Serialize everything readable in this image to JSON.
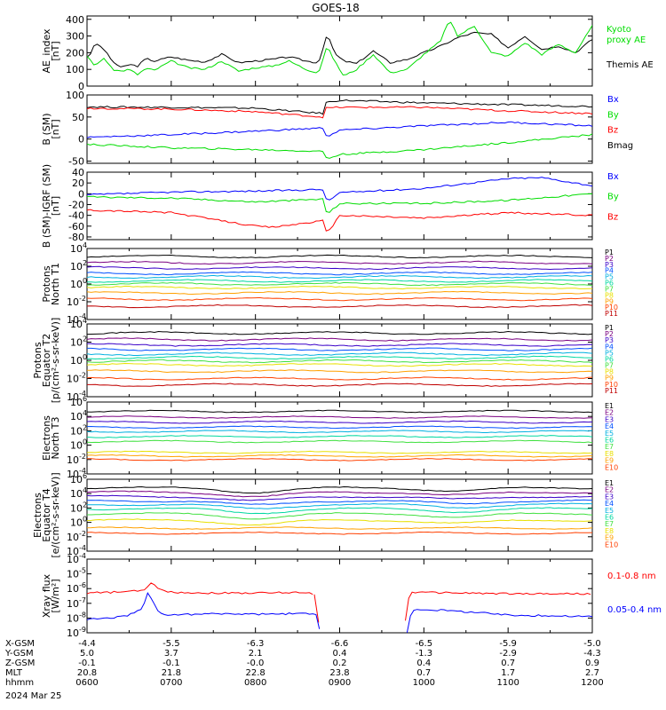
{
  "title": "GOES-18",
  "date_label": "2024 Mar 25",
  "colors": {
    "black": "#000000",
    "red": "#ff0000",
    "green": "#00dd00",
    "blue": "#0000ff",
    "channels": [
      "#000000",
      "#7a0080",
      "#3a00c8",
      "#0050ff",
      "#00b0e0",
      "#00d8a0",
      "#40e040",
      "#e8e000",
      "#ffa000",
      "#ff4000",
      "#c00000"
    ]
  },
  "chart_data": [
    {
      "id": "ae",
      "type": "line",
      "ylabel": [
        "AE_index",
        "[nT]"
      ],
      "ylim": [
        0,
        420
      ],
      "yticks": [
        {
          "v": 0,
          "t": "0"
        },
        {
          "v": 100,
          "t": "100"
        },
        {
          "v": 200,
          "t": "200"
        },
        {
          "v": 300,
          "t": "300"
        },
        {
          "v": 400,
          "t": "400"
        }
      ],
      "legend": [
        {
          "text": "Kyoto",
          "color": "#00dd00"
        },
        {
          "text": "proxy AE",
          "color": "#00dd00"
        },
        {
          "text": "Themis AE",
          "color": "#000000"
        }
      ],
      "series": [
        {
          "name": "Themis AE",
          "color": "#000000",
          "t": [
            6.0,
            6.05,
            6.1,
            6.2,
            6.3,
            6.4,
            6.5,
            6.6,
            6.7,
            6.8,
            7.0,
            7.2,
            7.4,
            7.6,
            7.8,
            8.0,
            8.2,
            8.4,
            8.6,
            8.75,
            8.85,
            8.95,
            9.05,
            9.2,
            9.4,
            9.6,
            9.8,
            10.0,
            10.2,
            10.4,
            10.6,
            10.8,
            11.0,
            11.2,
            11.4,
            11.6,
            11.8,
            12.0
          ],
          "v": [
            175,
            200,
            260,
            220,
            150,
            110,
            130,
            120,
            165,
            150,
            175,
            155,
            145,
            190,
            140,
            150,
            160,
            175,
            150,
            140,
            310,
            190,
            150,
            135,
            210,
            140,
            160,
            200,
            240,
            290,
            320,
            310,
            230,
            300,
            220,
            240,
            200,
            280
          ]
        },
        {
          "name": "Kyoto proxy AE",
          "color": "#00dd00",
          "t": [
            6.0,
            6.1,
            6.2,
            6.3,
            6.4,
            6.5,
            6.6,
            6.7,
            6.8,
            7.0,
            7.2,
            7.4,
            7.6,
            7.8,
            8.0,
            8.2,
            8.4,
            8.6,
            8.75,
            8.85,
            8.95,
            9.05,
            9.2,
            9.4,
            9.6,
            9.8,
            10.0,
            10.2,
            10.3,
            10.4,
            10.6,
            10.8,
            11.0,
            11.2,
            11.4,
            11.6,
            11.8,
            12.0
          ],
          "v": [
            180,
            120,
            170,
            100,
            90,
            100,
            70,
            105,
            95,
            150,
            110,
            100,
            150,
            90,
            110,
            120,
            150,
            100,
            80,
            240,
            140,
            60,
            100,
            190,
            80,
            100,
            190,
            270,
            400,
            300,
            360,
            200,
            180,
            260,
            190,
            250,
            200,
            360
          ]
        }
      ]
    },
    {
      "id": "bsm",
      "type": "line",
      "ylabel": [
        "B (SM)",
        "[nT]"
      ],
      "ylim": [
        -55,
        100
      ],
      "yticks": [
        {
          "v": -50,
          "t": "-50"
        },
        {
          "v": 0,
          "t": "0"
        },
        {
          "v": 50,
          "t": "50"
        },
        {
          "v": 100,
          "t": "100"
        }
      ],
      "legend": [
        {
          "text": "Bx",
          "color": "#0000ff"
        },
        {
          "text": "By",
          "color": "#00dd00"
        },
        {
          "text": "Bz",
          "color": "#ff0000"
        },
        {
          "text": "Bmag",
          "color": "#000000"
        }
      ],
      "series": [
        {
          "name": "Bmag",
          "color": "#000000",
          "t": [
            6.0,
            7.0,
            8.0,
            8.8,
            8.82,
            9.0,
            10.0,
            11.0,
            12.0
          ],
          "v": [
            73,
            72,
            70,
            58,
            82,
            88,
            82,
            78,
            74
          ]
        },
        {
          "name": "Bz",
          "color": "#ff0000",
          "t": [
            6.0,
            7.0,
            8.0,
            8.8,
            8.82,
            9.0,
            10.0,
            11.0,
            12.0
          ],
          "v": [
            70,
            68,
            62,
            50,
            70,
            72,
            72,
            64,
            58
          ]
        },
        {
          "name": "Bx",
          "color": "#0000ff",
          "t": [
            6.0,
            7.0,
            8.0,
            8.8,
            8.85,
            9.0,
            10.0,
            11.0,
            12.0
          ],
          "v": [
            4,
            10,
            18,
            25,
            5,
            20,
            30,
            38,
            30
          ]
        },
        {
          "name": "By",
          "color": "#00dd00",
          "t": [
            6.0,
            7.0,
            8.0,
            8.8,
            8.85,
            9.0,
            10.0,
            11.0,
            12.0
          ],
          "v": [
            -12,
            -20,
            -24,
            -28,
            -45,
            -35,
            -24,
            -8,
            10
          ]
        }
      ]
    },
    {
      "id": "bigrf",
      "type": "line",
      "ylabel": [
        "B (SM)-IGRF (SM)",
        "[nT]"
      ],
      "ylim": [
        -85,
        40
      ],
      "yticks": [
        {
          "v": -80,
          "t": "-80"
        },
        {
          "v": -60,
          "t": "-60"
        },
        {
          "v": -40,
          "t": "-40"
        },
        {
          "v": -20,
          "t": "-20"
        },
        {
          "v": 0,
          "t": "0"
        },
        {
          "v": 20,
          "t": "20"
        },
        {
          "v": 40,
          "t": "40"
        }
      ],
      "legend": [
        {
          "text": "Bx",
          "color": "#0000ff"
        },
        {
          "text": "By",
          "color": "#00dd00"
        },
        {
          "text": "Bz",
          "color": "#ff0000"
        }
      ],
      "series": [
        {
          "name": "Bx",
          "color": "#0000ff",
          "t": [
            6.0,
            7.0,
            8.0,
            8.8,
            8.85,
            9.0,
            10.0,
            11.0,
            11.4,
            12.0
          ],
          "v": [
            -2,
            3,
            5,
            8,
            -15,
            2,
            10,
            28,
            30,
            15
          ]
        },
        {
          "name": "By",
          "color": "#00dd00",
          "t": [
            6.0,
            7.0,
            8.0,
            8.8,
            8.85,
            9.0,
            10.0,
            11.0,
            12.0
          ],
          "v": [
            -6,
            -8,
            -15,
            -10,
            -38,
            -18,
            -18,
            -12,
            0
          ]
        },
        {
          "name": "Bz",
          "color": "#ff0000",
          "t": [
            6.0,
            7.0,
            8.0,
            8.2,
            8.8,
            8.85,
            9.0,
            10.0,
            11.0,
            12.0
          ],
          "v": [
            -30,
            -35,
            -60,
            -62,
            -50,
            -75,
            -40,
            -45,
            -35,
            -40
          ]
        }
      ]
    },
    {
      "id": "pn",
      "type": "line",
      "log": true,
      "ylabel": [
        "Protons",
        "North T1"
      ],
      "ylim": [
        -4,
        4
      ],
      "yticks": [
        {
          "v": -4,
          "t": "10",
          "e": "-4"
        },
        {
          "v": -2,
          "t": "10",
          "e": "-2"
        },
        {
          "v": 0,
          "t": "10",
          "e": "0"
        },
        {
          "v": 2,
          "t": "10",
          "e": "2"
        },
        {
          "v": 4,
          "t": "10",
          "e": "4"
        }
      ],
      "levels": [
        3.1,
        2.4,
        1.8,
        1.2,
        0.8,
        0.35,
        0.0,
        -0.4,
        -1.0,
        -1.7,
        -2.5
      ],
      "names": [
        "P1",
        "P2",
        "P3",
        "P4",
        "P5",
        "P6",
        "P7",
        "P8",
        "P9",
        "P10",
        "P11"
      ]
    },
    {
      "id": "pe",
      "type": "line",
      "log": true,
      "ylabel": [
        "Protons",
        "Equator T2",
        "[p/(cm²-s-sr-keV)]"
      ],
      "ylim": [
        -4,
        4
      ],
      "yticks": [
        {
          "v": -4,
          "t": "10",
          "e": "-4"
        },
        {
          "v": -2,
          "t": "10",
          "e": "-2"
        },
        {
          "v": 0,
          "t": "10",
          "e": "0"
        },
        {
          "v": 2,
          "t": "10",
          "e": "2"
        },
        {
          "v": 4,
          "t": "10",
          "e": "4"
        }
      ],
      "levels": [
        3.0,
        2.3,
        1.7,
        1.2,
        0.7,
        0.3,
        -0.1,
        -0.5,
        -1.2,
        -2.0,
        -2.7
      ],
      "names": [
        "P1",
        "P2",
        "P3",
        "P4",
        "P5",
        "P6",
        "P7",
        "P8",
        "P9",
        "P10",
        "P11"
      ]
    },
    {
      "id": "en",
      "type": "line",
      "log": true,
      "ylabel": [
        "Electrons",
        "North T3"
      ],
      "ylim": [
        -4,
        6
      ],
      "yticks": [
        {
          "v": -4,
          "t": "10",
          "e": "-4"
        },
        {
          "v": -2,
          "t": "10",
          "e": "-2"
        },
        {
          "v": 0,
          "t": "10",
          "e": "0"
        },
        {
          "v": 2,
          "t": "10",
          "e": "2"
        },
        {
          "v": 4,
          "t": "10",
          "e": "4"
        },
        {
          "v": 6,
          "t": "10",
          "e": "6"
        }
      ],
      "levels": [
        4.7,
        3.9,
        3.2,
        2.5,
        1.9,
        1.2,
        0.5,
        -1.0,
        -1.5,
        -2.0
      ],
      "names": [
        "E1",
        "E2",
        "E3",
        "E4",
        "E5",
        "E6",
        "E7",
        "E8",
        "E9",
        "E10"
      ]
    },
    {
      "id": "ee",
      "type": "line",
      "log": true,
      "ylabel": [
        "Electrons",
        "Equator T4",
        "[e/(cm²-s-sr-keV)]"
      ],
      "ylim": [
        -4,
        6
      ],
      "yticks": [
        {
          "v": -4,
          "t": "10",
          "e": "-4"
        },
        {
          "v": -2,
          "t": "10",
          "e": "-2"
        },
        {
          "v": 0,
          "t": "10",
          "e": "0"
        },
        {
          "v": 2,
          "t": "10",
          "e": "2"
        },
        {
          "v": 4,
          "t": "10",
          "e": "4"
        },
        {
          "v": 6,
          "t": "10",
          "e": "6"
        }
      ],
      "levels": [
        4.8,
        4.2,
        3.6,
        3.0,
        2.5,
        1.9,
        1.2,
        0.3,
        -0.8,
        -1.5
      ],
      "names": [
        "E1",
        "E2",
        "E3",
        "E4",
        "E5",
        "E6",
        "E7",
        "E8",
        "E9",
        "E10"
      ]
    },
    {
      "id": "xray",
      "type": "line",
      "log": true,
      "ylabel": [
        "Xray flux",
        "[W/m²]"
      ],
      "ylim": [
        -9,
        -4
      ],
      "yticks": [
        {
          "v": -9,
          "t": "10",
          "e": "-9"
        },
        {
          "v": -8,
          "t": "10",
          "e": "-8"
        },
        {
          "v": -7,
          "t": "10",
          "e": "-7"
        },
        {
          "v": -6,
          "t": "10",
          "e": "-6"
        },
        {
          "v": -5,
          "t": "10",
          "e": "-5"
        },
        {
          "v": -4,
          "t": "10",
          "e": "-4"
        }
      ],
      "legend": [
        {
          "text": "0.1-0.8 nm",
          "color": "#ff0000"
        },
        {
          "text": "0.05-0.4 nm",
          "color": "#0000ff"
        }
      ],
      "series": [
        {
          "name": "0.1-0.8 nm",
          "color": "#ff0000",
          "segments": [
            {
              "t": [
                6.0,
                6.3,
                6.5,
                6.7,
                6.75,
                6.8,
                6.9,
                7.0,
                7.5,
                8.0,
                8.6,
                8.7
              ],
              "v": [
                -6.3,
                -6.25,
                -6.2,
                -6.1,
                -5.55,
                -5.8,
                -6.1,
                -6.25,
                -6.3,
                -6.3,
                -6.25,
                -6.4
              ]
            },
            {
              "t": [
                8.7,
                8.75
              ],
              "v": [
                -6.4,
                -8.3
              ]
            },
            {
              "t": [
                9.78,
                9.83,
                9.9,
                10.5,
                11.0,
                11.5,
                12.0
              ],
              "v": [
                -8.2,
                -6.2,
                -6.25,
                -6.3,
                -6.35,
                -6.35,
                -6.35
              ]
            }
          ]
        },
        {
          "name": "0.05-0.4 nm",
          "color": "#0000ff",
          "segments": [
            {
              "t": [
                6.0,
                6.3,
                6.5,
                6.65,
                6.72,
                6.78,
                6.85,
                6.95,
                7.2,
                7.6,
                8.0,
                8.5,
                8.65,
                8.72,
                8.77
              ],
              "v": [
                -8.1,
                -8.0,
                -7.8,
                -7.4,
                -6.3,
                -6.9,
                -7.6,
                -7.8,
                -7.75,
                -7.7,
                -7.75,
                -7.7,
                -7.7,
                -7.8,
                -9.0
              ]
            },
            {
              "t": [
                9.8,
                9.85,
                9.95,
                10.3,
                10.6,
                11.0,
                11.5,
                12.0
              ],
              "v": [
                -9.0,
                -7.5,
                -7.4,
                -7.5,
                -7.6,
                -7.8,
                -7.85,
                -7.9
              ]
            }
          ]
        }
      ]
    }
  ],
  "xaxis": {
    "tmin": 6.0,
    "tmax": 12.0,
    "ticks": [
      6,
      7,
      8,
      9,
      10,
      11,
      12
    ],
    "rows": [
      {
        "label": "X-GSM",
        "values": [
          "-4.4",
          "-5.5",
          "-6.3",
          "-6.6",
          "-6.5",
          "-5.9",
          "-5.0"
        ]
      },
      {
        "label": "Y-GSM",
        "values": [
          "5.0",
          "3.7",
          "2.1",
          "0.4",
          "-1.3",
          "-2.9",
          "-4.3"
        ]
      },
      {
        "label": "Z-GSM",
        "values": [
          "-0.1",
          "-0.1",
          "-0.0",
          "0.2",
          "0.4",
          "0.7",
          "0.9"
        ]
      },
      {
        "label": "MLT",
        "values": [
          "20.8",
          "21.8",
          "22.8",
          "23.8",
          "0.7",
          "1.7",
          "2.7"
        ]
      },
      {
        "label": "hhmm",
        "values": [
          "0600",
          "0700",
          "0800",
          "0900",
          "1000",
          "1100",
          "1200"
        ]
      }
    ]
  }
}
